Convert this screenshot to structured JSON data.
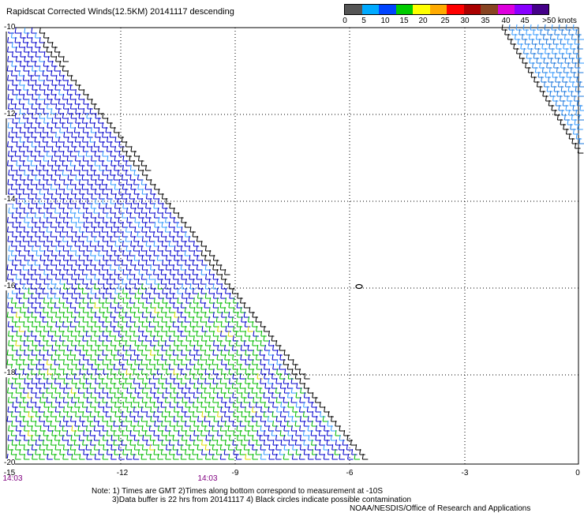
{
  "title": "Rapidscat Corrected Winds(12.5KM) 20141117 descending",
  "legend": {
    "colors": [
      "#555555",
      "#00aaff",
      "#0044ff",
      "#00cc00",
      "#ffff00",
      "#ffaa00",
      "#ff0000",
      "#aa0000",
      "#884422",
      "#dd00dd",
      "#8800ff",
      "#440088"
    ],
    "ticks": [
      "0",
      "5",
      "10",
      "15",
      "20",
      "25",
      "30",
      "35",
      "40",
      "45",
      ">50 knots"
    ]
  },
  "axes": {
    "lat_labels": [
      "-10",
      "-12",
      "-14",
      "-16",
      "-18",
      "-20"
    ],
    "lon_labels": [
      "-15",
      "-12",
      "-9",
      "-6",
      "-3",
      "0"
    ],
    "lat_range": [
      -20,
      -10
    ],
    "lon_range": [
      -15,
      0
    ]
  },
  "times": [
    "14:03",
    "14:03"
  ],
  "notes": {
    "line1": "Note: 1) Times are GMT 2)Times along bottom correspond to measurement at -10S",
    "line2": "3)Data buffer is 22 hrs from 20141117 4) Black circles indicate possible contamination",
    "credit": "NOAA/NESDIS/Office of Research and Applications"
  },
  "wind_colors": {
    "calm_black": "#000000",
    "blue": "#0000cc",
    "light_blue": "#3399ff",
    "green": "#00bb00",
    "yellow": "#dddd00"
  },
  "contamination_marker": "circle"
}
